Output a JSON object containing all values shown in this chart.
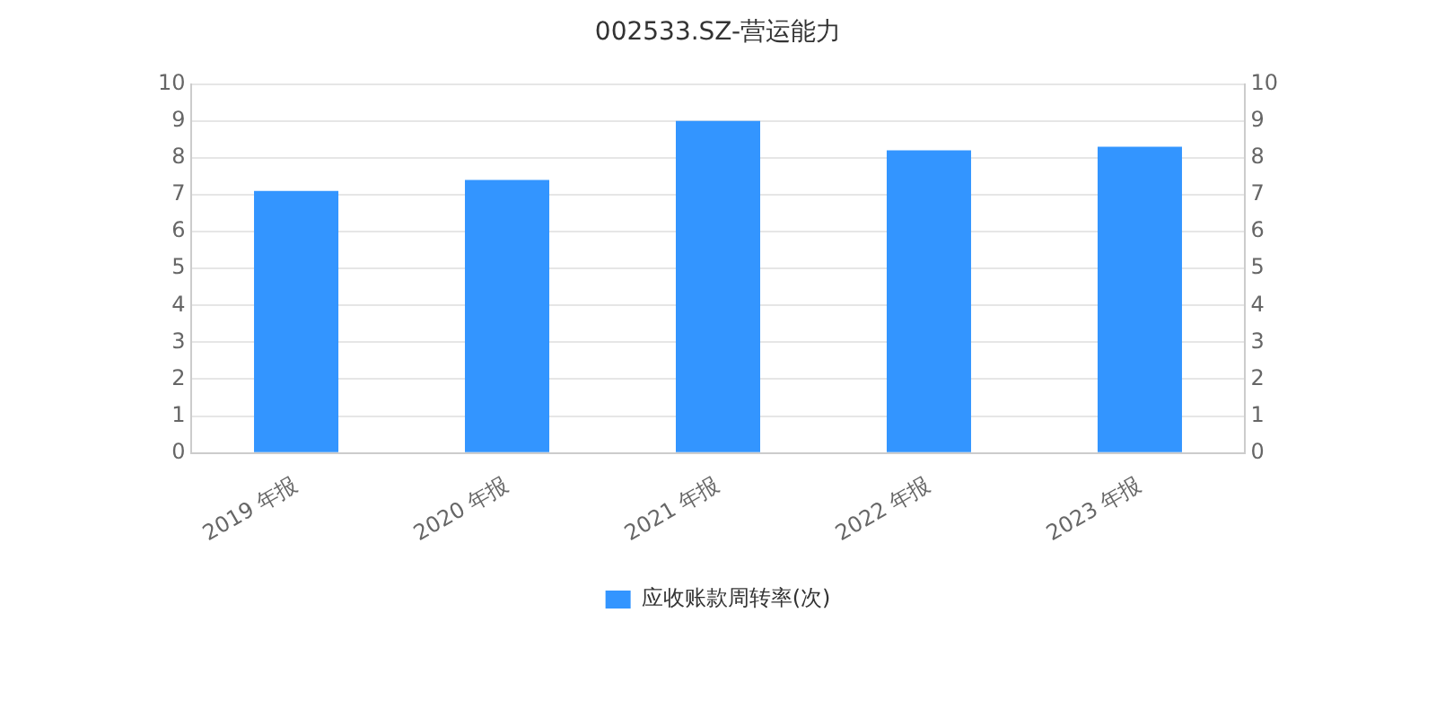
{
  "chart_data": {
    "type": "bar",
    "title": "002533.SZ-营运能力",
    "categories": [
      "2019 年报",
      "2020 年报",
      "2021 年报",
      "2022 年报",
      "2023 年报"
    ],
    "series": [
      {
        "name": "应收账款周转率(次)",
        "color": "#3395ff",
        "values": [
          7.1,
          7.4,
          9.0,
          8.2,
          8.3
        ]
      }
    ],
    "ylim": [
      0,
      10
    ],
    "yticks": [
      0,
      1,
      2,
      3,
      4,
      5,
      6,
      7,
      8,
      9,
      10
    ],
    "y2lim": [
      0,
      10
    ],
    "y2ticks": [
      0,
      1,
      2,
      3,
      4,
      5,
      6,
      7,
      8,
      9,
      10
    ],
    "grid": "y",
    "legend": "bottom"
  }
}
